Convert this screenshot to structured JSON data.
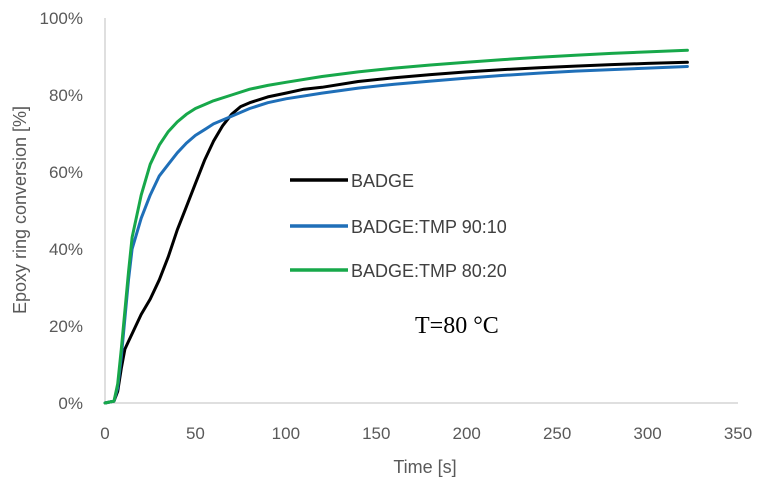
{
  "chart_data": {
    "type": "line",
    "title": "",
    "xlabel": "Time [s]",
    "ylabel": "Epoxy ring conversion [%]",
    "xlim": [
      0,
      350
    ],
    "ylim": [
      0,
      100
    ],
    "x_ticks": [
      0,
      50,
      100,
      150,
      200,
      250,
      300,
      350
    ],
    "x_tick_labels": [
      "0",
      "50",
      "100",
      "150",
      "200",
      "250",
      "300",
      "350"
    ],
    "y_ticks": [
      0,
      20,
      40,
      60,
      80,
      100
    ],
    "y_tick_labels": [
      "0%",
      "20%",
      "40%",
      "60%",
      "80%",
      "100%"
    ],
    "grid": false,
    "legend_position": "center",
    "annotation": "T=80 °C",
    "series": [
      {
        "name": "BADGE",
        "color": "#000000",
        "x": [
          0,
          5,
          7,
          9,
          11,
          13,
          15,
          20,
          25,
          30,
          35,
          40,
          45,
          50,
          55,
          60,
          65,
          70,
          75,
          80,
          90,
          100,
          110,
          120,
          140,
          160,
          180,
          200,
          220,
          240,
          260,
          280,
          300,
          322
        ],
        "y": [
          0,
          0.5,
          3,
          9,
          14,
          16,
          18,
          23,
          27,
          32,
          38,
          45,
          51,
          57,
          63,
          68,
          72,
          75,
          77,
          78,
          79.5,
          80.5,
          81.5,
          82,
          83.5,
          84.5,
          85.3,
          86,
          86.6,
          87.1,
          87.5,
          87.9,
          88.2,
          88.5
        ]
      },
      {
        "name": "BADGE:TMP 90:10",
        "color": "#1f6fb8",
        "x": [
          0,
          5,
          7,
          9,
          11,
          13,
          15,
          20,
          25,
          30,
          35,
          40,
          45,
          50,
          55,
          60,
          70,
          80,
          90,
          100,
          120,
          140,
          160,
          180,
          200,
          220,
          240,
          260,
          280,
          300,
          322
        ],
        "y": [
          0,
          0.5,
          4,
          12,
          22,
          32,
          40,
          48,
          54,
          59,
          62,
          65,
          67.5,
          69.5,
          71,
          72.5,
          74.5,
          76.5,
          78,
          79,
          80.5,
          81.8,
          82.8,
          83.6,
          84.4,
          85.1,
          85.7,
          86.2,
          86.6,
          87,
          87.4
        ]
      },
      {
        "name": "BADGE:TMP 80:20",
        "color": "#17a84a",
        "x": [
          0,
          5,
          7,
          9,
          11,
          13,
          15,
          20,
          25,
          30,
          35,
          40,
          45,
          50,
          55,
          60,
          70,
          80,
          90,
          100,
          120,
          140,
          160,
          180,
          200,
          220,
          240,
          260,
          280,
          300,
          322
        ],
        "y": [
          0,
          0.5,
          5,
          14,
          24,
          34,
          43,
          54,
          62,
          67,
          70.5,
          73,
          75,
          76.5,
          77.5,
          78.5,
          80,
          81.5,
          82.5,
          83.3,
          84.8,
          86,
          87,
          87.8,
          88.5,
          89.2,
          89.8,
          90.3,
          90.8,
          91.2,
          91.6
        ]
      }
    ]
  }
}
